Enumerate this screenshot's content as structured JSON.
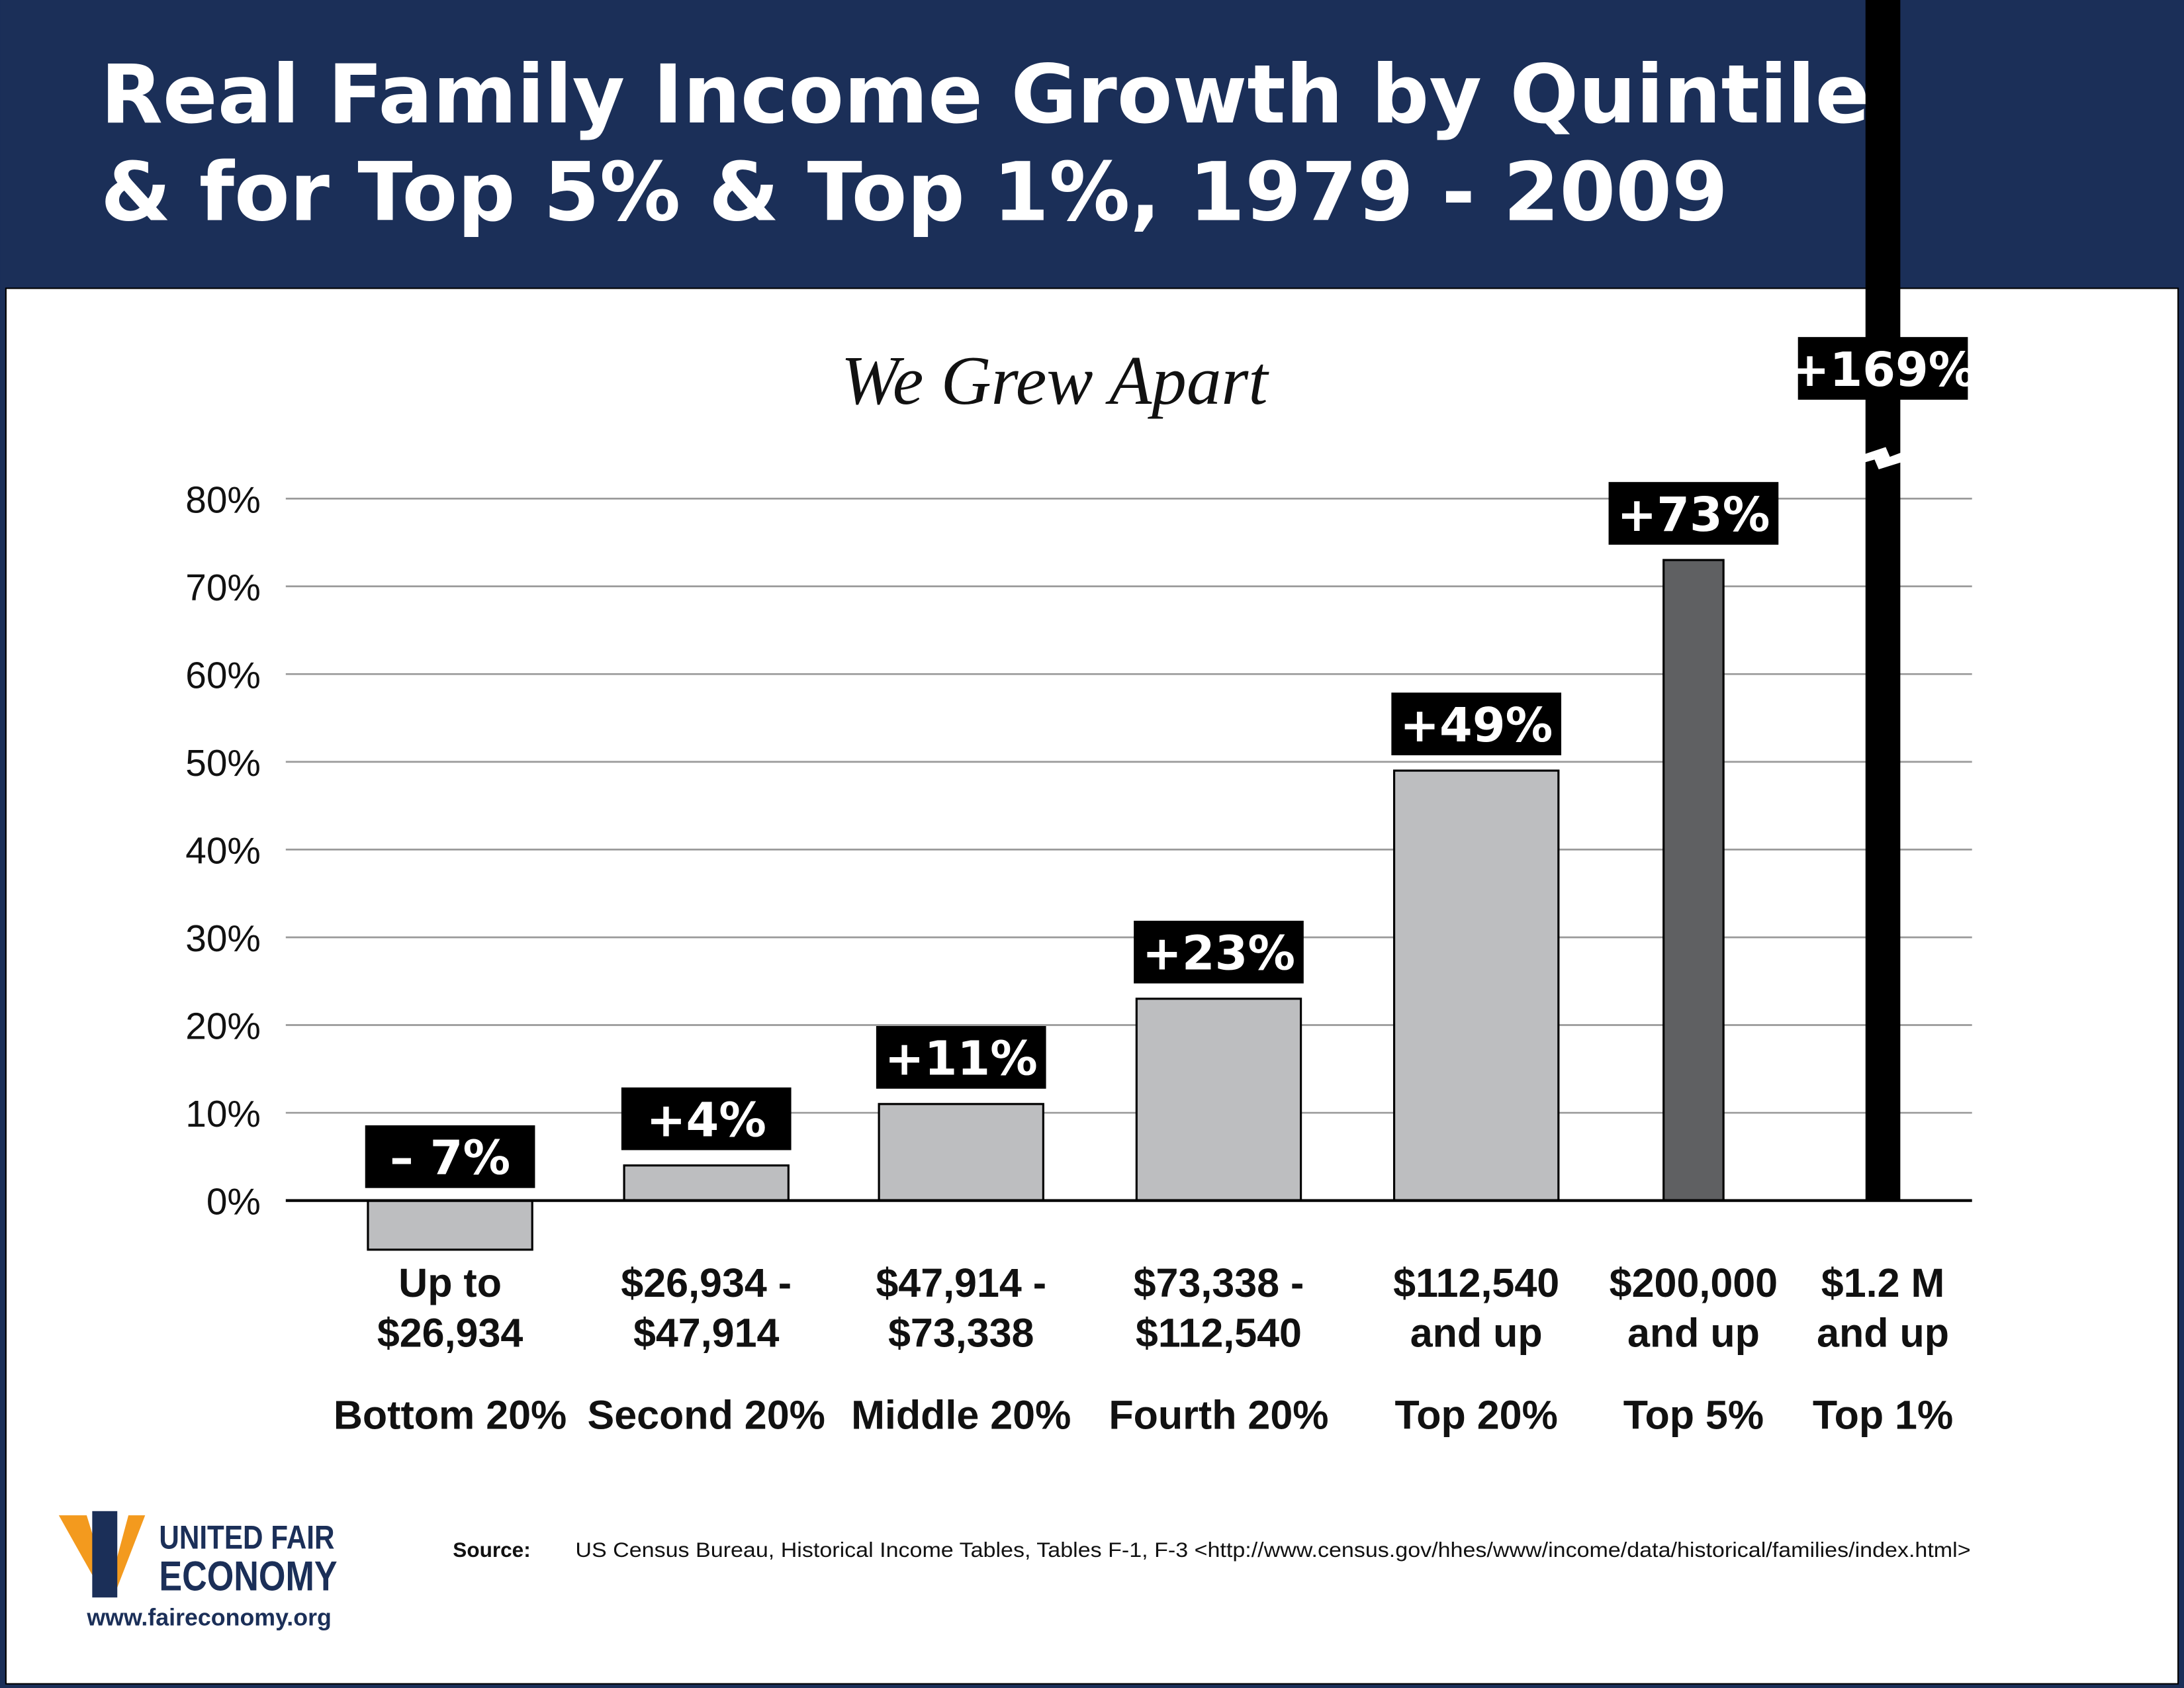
{
  "header": {
    "title_line1": "Real Family Income Growth by Quintile",
    "title_line2": "& for Top 5% & Top 1%, 1979 - 2009"
  },
  "colors": {
    "navy": "#1b2f58",
    "bar": "#bdbec0",
    "top5": "#5f6062",
    "top1": "#000000",
    "logo_orange": "#f39a1e"
  },
  "chart_data": {
    "type": "bar",
    "subtitle": "We Grew Apart",
    "ylim": [
      0,
      80
    ],
    "yticks": [
      "0%",
      "10%",
      "20%",
      "30%",
      "40%",
      "50%",
      "60%",
      "70%",
      "80%"
    ],
    "grid": true,
    "axis_break_on_last_bar": true,
    "categories": [
      "Bottom 20%",
      "Second 20%",
      "Middle 20%",
      "Fourth 20%",
      "Top 20%",
      "Top 5%",
      "Top 1%"
    ],
    "ranges": [
      [
        "Up to",
        "$26,934"
      ],
      [
        "$26,934 -",
        "$47,914"
      ],
      [
        "$47,914 -",
        "$73,338"
      ],
      [
        "$73,338 -",
        "$112,540"
      ],
      [
        "$112,540",
        "and up"
      ],
      [
        "$200,000",
        "and up"
      ],
      [
        "$1.2 M",
        "and up"
      ]
    ],
    "values": [
      -7,
      4,
      11,
      23,
      49,
      73,
      169
    ],
    "data_labels": [
      "– 7%",
      "+4%",
      "+11%",
      "+23%",
      "+49%",
      "+73%",
      "+169%"
    ]
  },
  "footer": {
    "source_label": "Source:",
    "source_text": "US Census Bureau, Historical Income Tables, Tables F-1, F-3 <http://www.census.gov/hhes/www/income/data/historical/families/index.html>",
    "logo_text": "UNITED FOR A FAIR ECONOMY",
    "url": "www.faireconomy.org"
  }
}
